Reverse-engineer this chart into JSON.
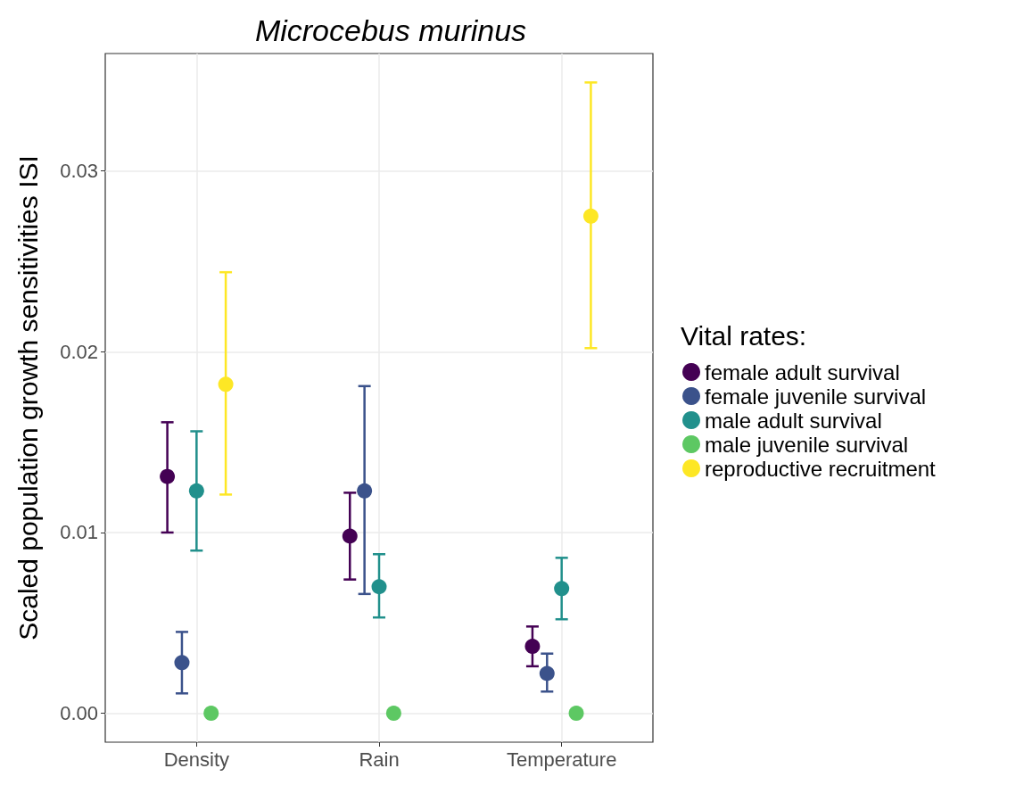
{
  "chart_data": {
    "type": "scatter",
    "title": "Microcebus murinus",
    "ylabel": "Scaled population growth sensitivities ISI",
    "legend_title": "Vital rates:",
    "categories": [
      "Density",
      "Rain",
      "Temperature"
    ],
    "series": [
      {
        "name": "female adult survival",
        "color": "#440154",
        "values": [
          0.0131,
          0.0098,
          0.0037
        ],
        "errors": [
          [
            0.01,
            0.0161
          ],
          [
            0.0074,
            0.0122
          ],
          [
            0.0026,
            0.0048
          ]
        ]
      },
      {
        "name": "female juvenile survival",
        "color": "#3b528b",
        "values": [
          0.0028,
          0.0123,
          0.0022
        ],
        "errors": [
          [
            0.0011,
            0.0045
          ],
          [
            0.0066,
            0.0181
          ],
          [
            0.0012,
            0.0033
          ]
        ]
      },
      {
        "name": "male adult survival",
        "color": "#21908c",
        "values": [
          0.0123,
          0.007,
          0.0069
        ],
        "errors": [
          [
            0.009,
            0.0156
          ],
          [
            0.0053,
            0.0088
          ],
          [
            0.0052,
            0.0086
          ]
        ]
      },
      {
        "name": "male juvenile survival",
        "color": "#5dc863",
        "values": [
          0,
          0,
          0
        ]
      },
      {
        "name": "reproductive recruitment",
        "color": "#fde725",
        "values": [
          0.0182,
          null,
          0.0275
        ],
        "errors": [
          [
            0.0121,
            0.0244
          ],
          null,
          [
            0.0202,
            0.0349
          ]
        ]
      }
    ],
    "ylim": [
      -0.0016,
      0.0365
    ],
    "yticks": [
      {
        "value": 0,
        "label": "0.00"
      },
      0.01,
      0.02,
      0.03
    ],
    "grid": true,
    "legend": "right",
    "marker": "circle"
  }
}
